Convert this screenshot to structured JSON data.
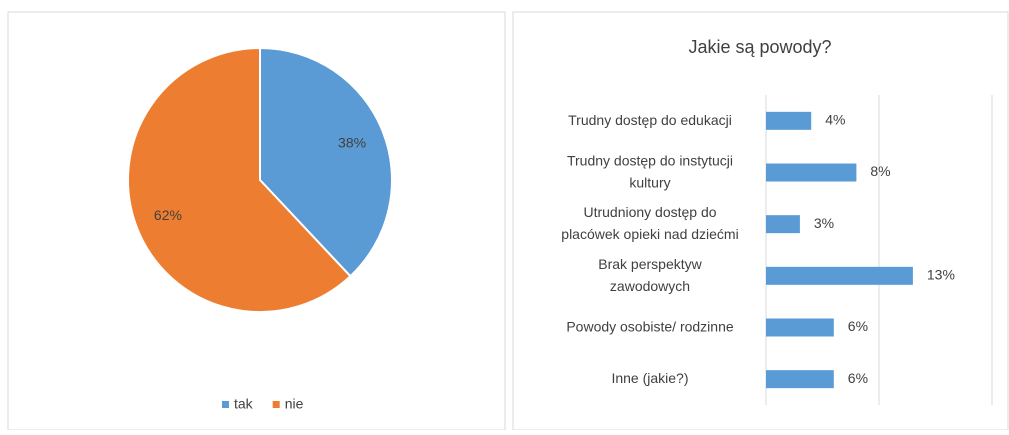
{
  "chart_data": [
    {
      "type": "pie",
      "categories": [
        "tak",
        "nie"
      ],
      "values": [
        38,
        62
      ],
      "value_labels": [
        "38%",
        "62%"
      ],
      "colors": [
        "#5b9bd5",
        "#ed7d31"
      ],
      "legend": "bottom"
    },
    {
      "type": "hbar",
      "title": "Jakie są powody?",
      "categories": [
        "Trudny dostęp do edukacji",
        "Trudny dostęp do instytucji\nkultury",
        "Utrudniony dostęp do\nplacówek opieki nad dziećmi",
        "Brak perspektyw\nzawodowych",
        "Powody osobiste/ rodzinne",
        "Inne (jakie?)"
      ],
      "values": [
        4,
        8,
        3,
        13,
        6,
        6
      ],
      "value_labels": [
        "4%",
        "8%",
        "3%",
        "13%",
        "6%",
        "6%"
      ],
      "color": "#5b9bd5",
      "xlim": [
        0,
        20
      ],
      "xticks": [
        0,
        10,
        20
      ],
      "grid": true
    }
  ]
}
